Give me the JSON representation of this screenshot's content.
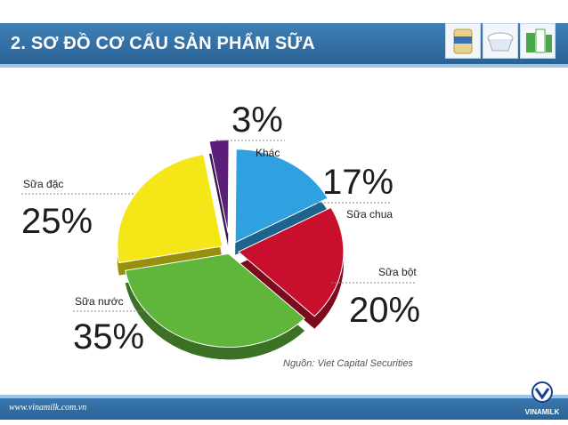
{
  "header": {
    "title": "2. SƠ ĐỒ CƠ CẤU SẢN PHẨM SỮA"
  },
  "footer": {
    "website": "www.vinamilk.com.vn",
    "logo_text": "VINAMILK"
  },
  "source": "Nguồn: Viet Capital Securities",
  "colors": {
    "header": "#2f6ea5",
    "khac": "#5b1f7a",
    "sua_chua": "#2fa0e0",
    "sua_bot": "#c8102e",
    "sua_nuoc": "#5fb63a",
    "sua_dac": "#f4e617"
  },
  "chart_data": {
    "type": "pie",
    "title": "",
    "categories": [
      "Khác",
      "Sữa chua",
      "Sữa bột",
      "Sữa nước",
      "Sữa đặc"
    ],
    "values": [
      3,
      17,
      20,
      35,
      25
    ],
    "value_labels": [
      "3%",
      "17%",
      "20%",
      "35%",
      "25%"
    ],
    "three_d": true
  }
}
